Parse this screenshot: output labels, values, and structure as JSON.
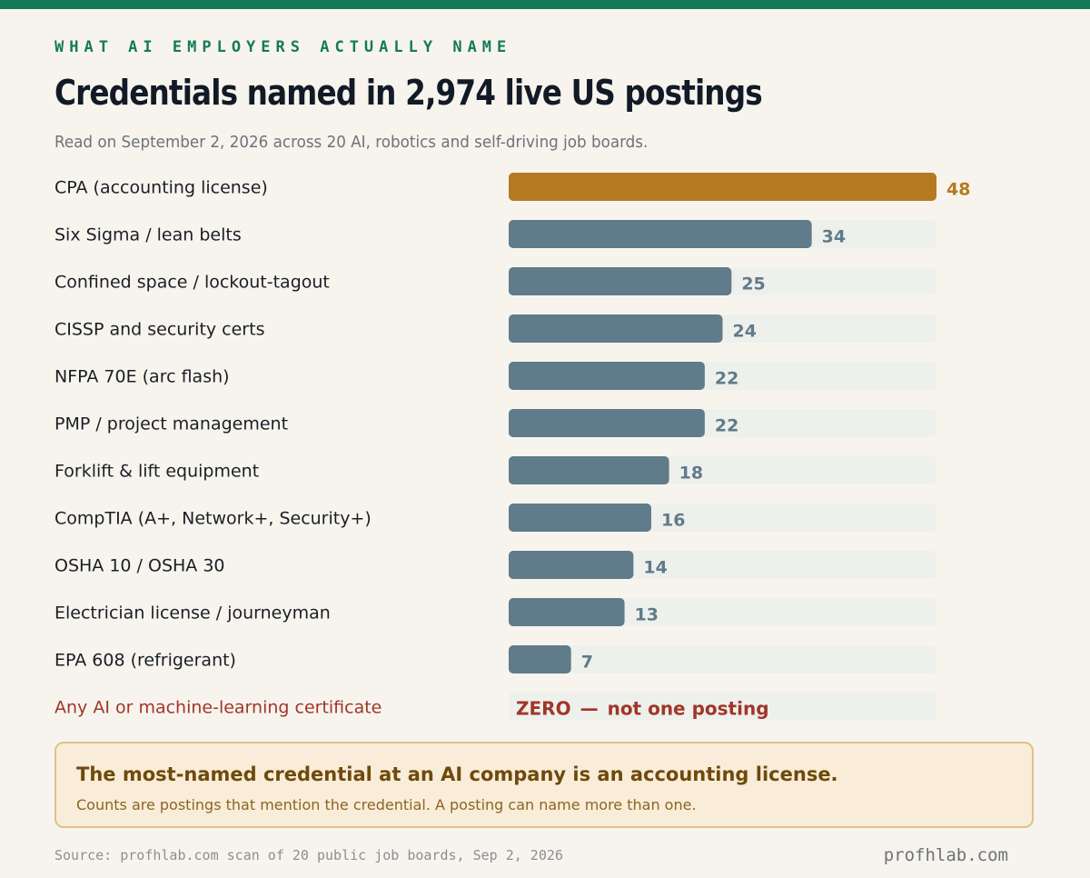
{
  "header": {
    "kicker": "WHAT AI EMPLOYERS ACTUALLY NAME",
    "title": "Credentials named in 2,974 live US postings",
    "subtitle": "Read on September 2, 2026 across 20 AI, robotics and self-driving job boards."
  },
  "chart_data": {
    "type": "bar",
    "orientation": "horizontal",
    "categories": [
      "CPA (accounting license)",
      "Six Sigma / lean belts",
      "Confined space / lockout-tagout",
      "CISSP and security certs",
      "NFPA 70E (arc flash)",
      "PMP / project management",
      "Forklift & lift equipment",
      "CompTIA (A+, Network+, Security+)",
      "OSHA 10 / OSHA 30",
      "Electrician license / journeyman",
      "EPA 608 (refrigerant)",
      "Any AI or machine-learning certificate"
    ],
    "values": [
      48,
      34,
      25,
      24,
      22,
      22,
      18,
      16,
      14,
      13,
      7,
      0
    ],
    "value_labels": [
      "48",
      "34",
      "25",
      "24",
      "22",
      "22",
      "18",
      "16",
      "14",
      "13",
      "7",
      ""
    ],
    "zero_label": {
      "strong": "ZERO",
      "dash": "—",
      "rest": "not one posting"
    },
    "xlim": [
      0,
      48
    ],
    "grid": false,
    "legend": "none",
    "colors": {
      "highlight": "#b57a20",
      "default": "#607b89",
      "track": "#eef0ec",
      "zero": "#a03628",
      "label": "#1a1f24"
    }
  },
  "callout": {
    "headline": "The most-named credential at an AI company is an accounting license.",
    "body": "Counts are postings that mention the credential. A posting can name more than one."
  },
  "footer": {
    "source": "Source: profhlab.com scan of 20 public job boards, Sep 2, 2026",
    "brand": "profhlab.com"
  }
}
